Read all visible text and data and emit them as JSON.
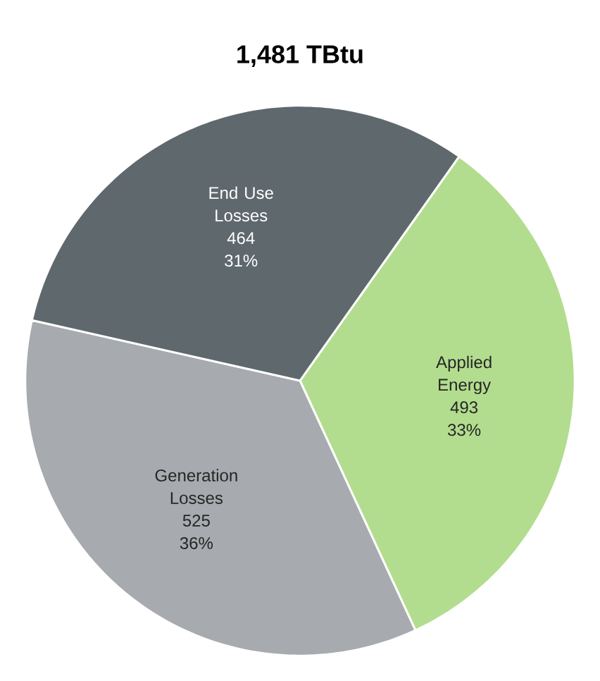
{
  "chart_data": {
    "type": "pie",
    "title": "1,481 TBtu",
    "categories": [
      "Applied Energy",
      "Generation Losses",
      "End Use Losses"
    ],
    "values": [
      493,
      525,
      464
    ],
    "colors": [
      "#b2dd8e",
      "#a7aaae",
      "#5f686d"
    ],
    "value_labels": [
      "493",
      "525",
      "464"
    ],
    "annotations": [
      "33%",
      "36%",
      "31%"
    ]
  }
}
